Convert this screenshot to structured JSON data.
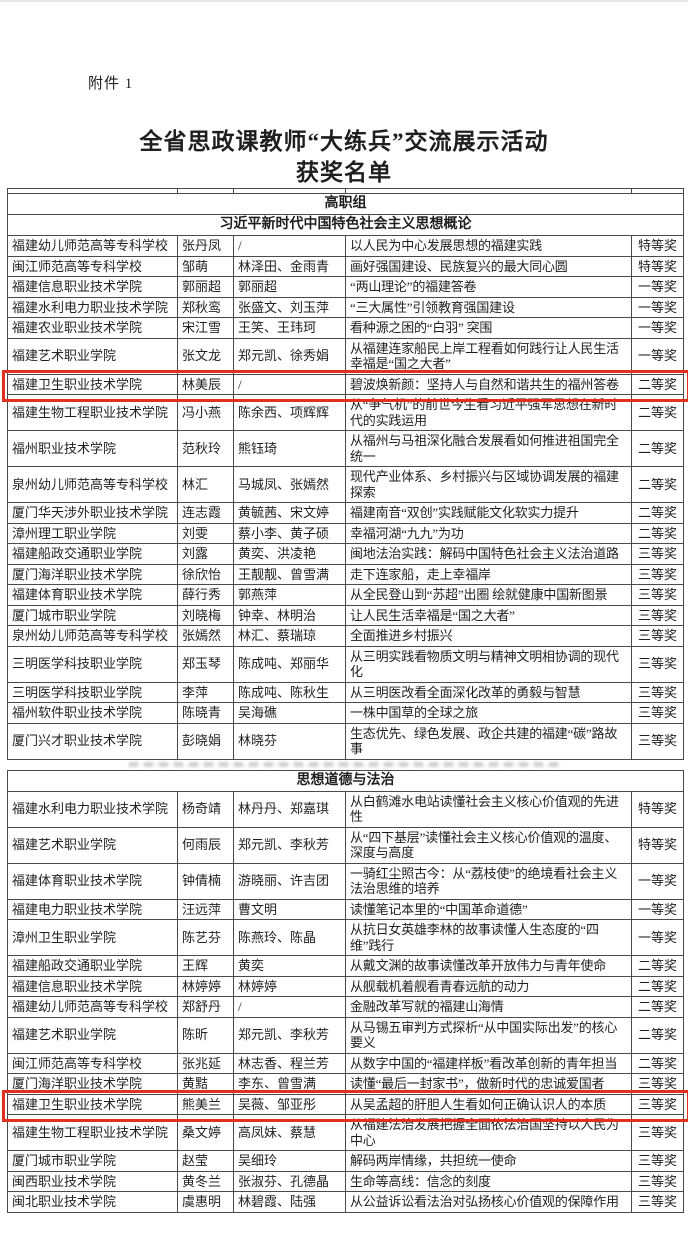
{
  "page": {
    "attachment_label": "附件 1",
    "title_line1": "全省思政课教师“大练兵”交流展示活动",
    "title_line2": "获奖名单",
    "group_label": "高职组"
  },
  "colors": {
    "highlight_red": "#e2301f",
    "table_border": "#4a4a4a",
    "text": "#1f1f1f"
  },
  "sections": [
    {
      "header": "习近平新时代中国特色社会主义思想概论",
      "rows": [
        {
          "school": "福建幼儿师范高等专科学校",
          "teacher": "张丹凤",
          "team": "/",
          "topic": "以人民为中心发展思想的福建实践",
          "award": "特等奖",
          "highlighted": false
        },
        {
          "school": "闽江师范高等专科学校",
          "teacher": "邹萌",
          "team": "林泽田、金雨青",
          "topic": "画好强国建设、民族复兴的最大同心圆",
          "award": "特等奖",
          "highlighted": false
        },
        {
          "school": "福建信息职业技术学院",
          "teacher": "郭丽超",
          "team": "郭丽超",
          "topic": "“两山理论”的福建答卷",
          "award": "一等奖",
          "highlighted": false
        },
        {
          "school": "福建水利电力职业技术学院",
          "teacher": "郑秋鸾",
          "team": "张盛文、刘玉萍",
          "topic": "“三大属性”引领教育强国建设",
          "award": "一等奖",
          "highlighted": false
        },
        {
          "school": "福建农业职业技术学院",
          "teacher": "宋江雪",
          "team": "王笑、王玮珂",
          "topic": "看种源之困的“白羽” 突围",
          "award": "一等奖",
          "highlighted": false
        },
        {
          "school": "福建艺术职业学院",
          "teacher": "张文龙",
          "team": "郑元凯、徐秀娟",
          "topic": "从福建连家船民上岸工程看如何践行让人民生活幸福是“国之大者”",
          "award": "一等奖",
          "highlighted": false
        },
        {
          "school": "福建卫生职业技术学院",
          "teacher": "林美辰",
          "team": "/",
          "topic": "碧波焕新颜：坚持人与自然和谐共生的福州答卷",
          "award": "二等奖",
          "highlighted": true
        },
        {
          "school": "福建生物工程职业技术学院",
          "teacher": "冯小燕",
          "team": "陈余西、项辉辉",
          "topic": "从“争气机”的前世今生看习近平强军思想在新时代的实践运用",
          "award": "二等奖",
          "highlighted": false
        },
        {
          "school": "福州职业技术学院",
          "teacher": "范秋玲",
          "team": "熊钰琦",
          "topic": "从福州与马祖深化融合发展看如何推进祖国完全统一",
          "award": "二等奖",
          "highlighted": false
        },
        {
          "school": "泉州幼儿师范高等专科学校",
          "teacher": "林汇",
          "team": "马城凤、张嫣然",
          "topic": "现代产业体系、乡村振兴与区域协调发展的福建探索",
          "award": "二等奖",
          "highlighted": false
        },
        {
          "school": "厦门华天涉外职业技术学院",
          "teacher": "连志霞",
          "team": "黄毓茜、宋文婷",
          "topic": "福建南音“双创”实践赋能文化软实力提升",
          "award": "二等奖",
          "highlighted": false
        },
        {
          "school": "漳州理工职业学院",
          "teacher": "刘雯",
          "team": "蔡小李、黄子硕",
          "topic": "幸福河湖“九九”为功",
          "award": "二等奖",
          "highlighted": false
        },
        {
          "school": "福建船政交通职业学院",
          "teacher": "刘露",
          "team": "黄奕、洪凌艳",
          "topic": "闽地法治实践：解码中国特色社会主义法治道路",
          "award": "三等奖",
          "highlighted": false
        },
        {
          "school": "厦门海洋职业技术学院",
          "teacher": "徐欣怡",
          "team": "王靓靓、曾雪满",
          "topic": "走下连家船，走上幸福岸",
          "award": "三等奖",
          "highlighted": false
        },
        {
          "school": "福建体育职业技术学院",
          "teacher": "薛行秀",
          "team": "郭燕萍",
          "topic": "从全民登山到“苏超”出圈 绘就健康中国新图景",
          "award": "三等奖",
          "highlighted": false
        },
        {
          "school": "厦门城市职业学院",
          "teacher": "刘晓梅",
          "team": "钟幸、林明治",
          "topic": "让人民生活幸福是“国之大者”",
          "award": "三等奖",
          "highlighted": false
        },
        {
          "school": "泉州幼儿师范高等专科学校",
          "teacher": "张嫣然",
          "team": "林汇、蔡瑞琼",
          "topic": "全面推进乡村振兴",
          "award": "三等奖",
          "highlighted": false
        },
        {
          "school": "三明医学科技职业学院",
          "teacher": "郑玉琴",
          "team": "陈成吨、郑丽华",
          "topic": "从三明实践看物质文明与精神文明相协调的现代化",
          "award": "三等奖",
          "highlighted": false
        },
        {
          "school": "三明医学科技职业学院",
          "teacher": "李萍",
          "team": "陈成吨、陈秋生",
          "topic": "从三明医改看全面深化改革的勇毅与智慧",
          "award": "三等奖",
          "highlighted": false
        },
        {
          "school": "福州软件职业技术学院",
          "teacher": "陈晓青",
          "team": "吴海礁",
          "topic": "一株中国草的全球之旅",
          "award": "三等奖",
          "highlighted": false
        },
        {
          "school": "厦门兴才职业技术学院",
          "teacher": "彭晓娟",
          "team": "林晓芬",
          "topic": "生态优先、绿色发展、政企共建的福建“碳”路故事",
          "award": "三等奖",
          "highlighted": false
        }
      ]
    },
    {
      "header": "思想道德与法治",
      "rows": [
        {
          "school": "福建水利电力职业技术学院",
          "teacher": "杨奇靖",
          "team": "林丹丹、郑嘉琪",
          "topic": "从白鹤滩水电站读懂社会主义核心价值观的先进性",
          "award": "特等奖",
          "highlighted": false
        },
        {
          "school": "福建艺术职业学院",
          "teacher": "何雨辰",
          "team": "郑元凯、李秋芳",
          "topic": "从“四下基层”读懂社会主义核心价值观的温度、深度与高度",
          "award": "特等奖",
          "highlighted": false
        },
        {
          "school": "福建体育职业技术学院",
          "teacher": "钟倩楠",
          "team": "游晓丽、许吉团",
          "topic": "一骑红尘照古今：从“荔枝使”的绝境看社会主义法治思维的培养",
          "award": "一等奖",
          "highlighted": false
        },
        {
          "school": "福建电力职业技术学院",
          "teacher": "汪远萍",
          "team": "曹文明",
          "topic": "读懂笔记本里的“中国革命道德”",
          "award": "一等奖",
          "highlighted": false
        },
        {
          "school": "漳州卫生职业学院",
          "teacher": "陈艺芬",
          "team": "陈燕玲、陈晶",
          "topic": "从抗日女英雄李林的故事读懂人生态度的“四维”践行",
          "award": "一等奖",
          "highlighted": false
        },
        {
          "school": "福建船政交通职业学院",
          "teacher": "王辉",
          "team": "黄奕",
          "topic": "从戴文渊的故事读懂改革开放伟力与青年使命",
          "award": "二等奖",
          "highlighted": false
        },
        {
          "school": "福建信息职业技术学院",
          "teacher": "林婷婷",
          "team": "林婷婷",
          "topic": "从舰载机着舰看青春远航的动力",
          "award": "二等奖",
          "highlighted": false
        },
        {
          "school": "福建幼儿师范高等专科学校",
          "teacher": "郑舒丹",
          "team": "/",
          "topic": "金融改革写就的福建山海情",
          "award": "二等奖",
          "highlighted": false
        },
        {
          "school": "福建艺术职业学院",
          "teacher": "陈昕",
          "team": "郑元凯、李秋芳",
          "topic": "从马锡五审判方式探析“从中国实际出发”的核心要义",
          "award": "二等奖",
          "highlighted": false
        },
        {
          "school": "闽江师范高等专科学校",
          "teacher": "张兆延",
          "team": "林志香、程兰芳",
          "topic": "从数字中国的“福建样板”看改革创新的青年担当",
          "award": "二等奖",
          "highlighted": false
        },
        {
          "school": "厦门海洋职业技术学院",
          "teacher": "黄黠",
          "team": "李东、曾雪满",
          "topic": "读懂“最后一封家书”，做新时代的忠诚爱国者",
          "award": "三等奖",
          "highlighted": false
        },
        {
          "school": "福建卫生职业技术学院",
          "teacher": "熊美兰",
          "team": "吴薇、邹亚彤",
          "topic": "从吴孟超的肝胆人生看如何正确认识人的本质",
          "award": "三等奖",
          "highlighted": true
        },
        {
          "school": "福建生物工程职业技术学院",
          "teacher": "桑文婷",
          "team": "高凤妹、蔡慧",
          "topic": "从福建法治发展把握全面依法治国坚持以人民为中心",
          "award": "三等奖",
          "highlighted": false
        },
        {
          "school": "厦门城市职业学院",
          "teacher": "赵莹",
          "team": "吴细玲",
          "topic": "解码两岸情缘，共担统一使命",
          "award": "三等奖",
          "highlighted": false
        },
        {
          "school": "闽西职业技术学院",
          "teacher": "黄冬兰",
          "team": "张淑芬、孔德晶",
          "topic": "生命等高线：信念的刻度",
          "award": "三等奖",
          "highlighted": false
        },
        {
          "school": "闽北职业技术学院",
          "teacher": "虞惠明",
          "team": "林碧霞、陆强",
          "topic": "从公益诉讼看法治对弘扬核心价值观的保障作用",
          "award": "三等奖",
          "highlighted": false
        }
      ]
    }
  ]
}
